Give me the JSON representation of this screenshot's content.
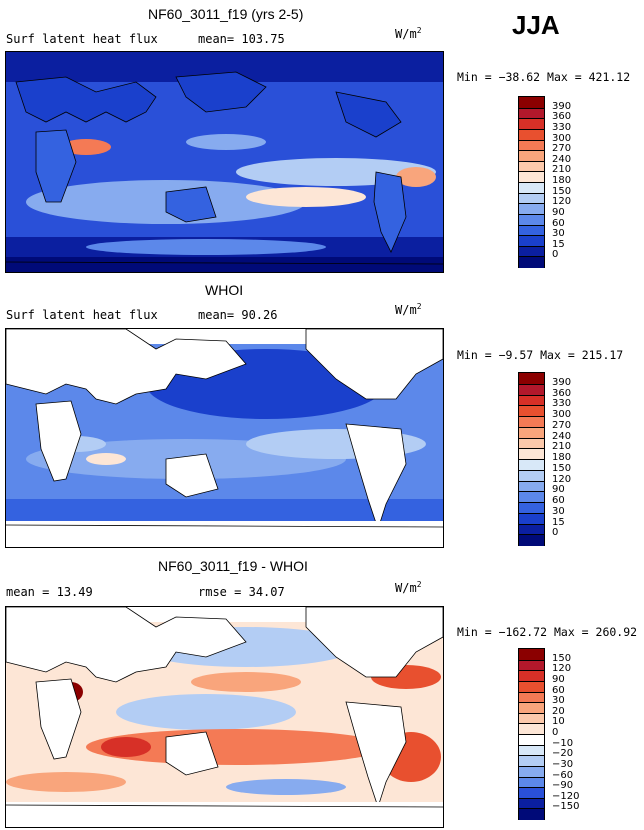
{
  "season_label": "JJA",
  "panels": [
    {
      "title": "NF60_3011_f19 (yrs 2-5)",
      "left_label": "Surf latent heat flux",
      "stat_label": "mean=",
      "stat_value": "103.75",
      "units": "W/m",
      "units_sup": "2",
      "min_label": "Min =",
      "min_value": "−38.62",
      "max_label": "Max =",
      "max_value": "421.12",
      "colorbar_levels": [
        "390",
        "360",
        "330",
        "300",
        "270",
        "240",
        "210",
        "180",
        "150",
        "120",
        "90",
        "60",
        "30",
        "15",
        "0"
      ],
      "colorbar_colors": [
        "#8b0000",
        "#b2182b",
        "#d73027",
        "#e8502f",
        "#f47a55",
        "#f9a57c",
        "#fcc9ab",
        "#fde6d6",
        "#d8e8f8",
        "#b3cdf4",
        "#87abef",
        "#5c88ea",
        "#3462e0",
        "#1a40cc",
        "#0b1fa0",
        "#000a78"
      ]
    },
    {
      "title": "WHOI",
      "left_label": "Surf latent heat flux",
      "stat_label": "mean=",
      "stat_value": "90.26",
      "units": "W/m",
      "units_sup": "2",
      "min_label": "Min =",
      "min_value": "−9.57",
      "max_label": "Max =",
      "max_value": "215.17",
      "colorbar_levels": [
        "390",
        "360",
        "330",
        "300",
        "270",
        "240",
        "210",
        "180",
        "150",
        "120",
        "90",
        "60",
        "30",
        "15",
        "0"
      ],
      "colorbar_colors": [
        "#8b0000",
        "#b2182b",
        "#d73027",
        "#e8502f",
        "#f47a55",
        "#f9a57c",
        "#fcc9ab",
        "#fde6d6",
        "#d8e8f8",
        "#b3cdf4",
        "#87abef",
        "#5c88ea",
        "#3462e0",
        "#1a40cc",
        "#0b1fa0",
        "#000a78"
      ]
    },
    {
      "title": "NF60_3011_f19 - WHOI",
      "left_label": "mean =",
      "left_value": "13.49",
      "stat_label": "rmse =",
      "stat_value": "34.07",
      "units": "W/m",
      "units_sup": "2",
      "min_label": "Min =",
      "min_value": "−162.72",
      "max_label": "Max =",
      "max_value": "260.92",
      "colorbar_levels": [
        "150",
        "120",
        "90",
        "60",
        "30",
        "20",
        "10",
        "0",
        "−10",
        "−20",
        "−30",
        "−60",
        "−90",
        "−120",
        "−150"
      ],
      "colorbar_colors": [
        "#8b0000",
        "#b2182b",
        "#d73027",
        "#e8502f",
        "#f47a55",
        "#f9a57c",
        "#fcc9ab",
        "#fde6d6",
        "#ffffff",
        "#d8e8f8",
        "#b3cdf4",
        "#87abef",
        "#5c88ea",
        "#2a50d8",
        "#0b1fa0",
        "#000a78"
      ]
    }
  ],
  "chart_data": [
    {
      "type": "heatmap",
      "title": "NF60_3011_f19 (yrs 2-5)",
      "variable": "Surf latent heat flux",
      "mean": 103.75,
      "min": -38.62,
      "max": 421.12,
      "units": "W/m2",
      "contour_levels": [
        0,
        15,
        30,
        60,
        90,
        120,
        150,
        180,
        210,
        240,
        270,
        300,
        330,
        360,
        390
      ]
    },
    {
      "type": "heatmap",
      "title": "WHOI",
      "variable": "Surf latent heat flux",
      "mean": 90.26,
      "min": -9.57,
      "max": 215.17,
      "units": "W/m2",
      "contour_levels": [
        0,
        15,
        30,
        60,
        90,
        120,
        150,
        180,
        210,
        240,
        270,
        300,
        330,
        360,
        390
      ]
    },
    {
      "type": "heatmap",
      "title": "NF60_3011_f19 - WHOI",
      "mean": 13.49,
      "rmse": 34.07,
      "min": -162.72,
      "max": 260.92,
      "units": "W/m2",
      "contour_levels": [
        -150,
        -120,
        -90,
        -60,
        -30,
        -20,
        -10,
        0,
        10,
        20,
        30,
        60,
        90,
        120,
        150
      ]
    }
  ]
}
